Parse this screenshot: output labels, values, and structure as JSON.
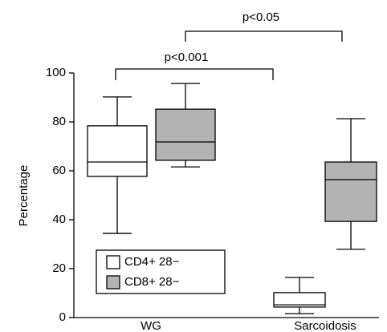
{
  "chart_data": {
    "type": "box",
    "y_label": "Percentage",
    "categories": [
      "WG",
      "Sarcoidosis"
    ],
    "series": [
      {
        "name": "CD4+ 28−",
        "color": "#ffffff",
        "min": [
          34.4,
          1.6
        ],
        "q1": [
          57.7,
          4.3
        ],
        "median": [
          63.6,
          5.2
        ],
        "q3": [
          78.4,
          10.2
        ],
        "max": [
          90.2,
          16.4
        ]
      },
      {
        "name": "CD8+ 28−",
        "color": "#b3b3b3",
        "min": [
          61.6,
          27.9
        ],
        "q1": [
          64.3,
          39.3
        ],
        "median": [
          71.8,
          56.4
        ],
        "q3": [
          85.2,
          63.6
        ],
        "max": [
          95.7,
          81.3
        ]
      }
    ],
    "ylim": [
      0,
      100
    ],
    "yticks": [
      0,
      20,
      40,
      60,
      80,
      100
    ],
    "annotations": [
      "p<0.001",
      "p<0.05"
    ]
  }
}
